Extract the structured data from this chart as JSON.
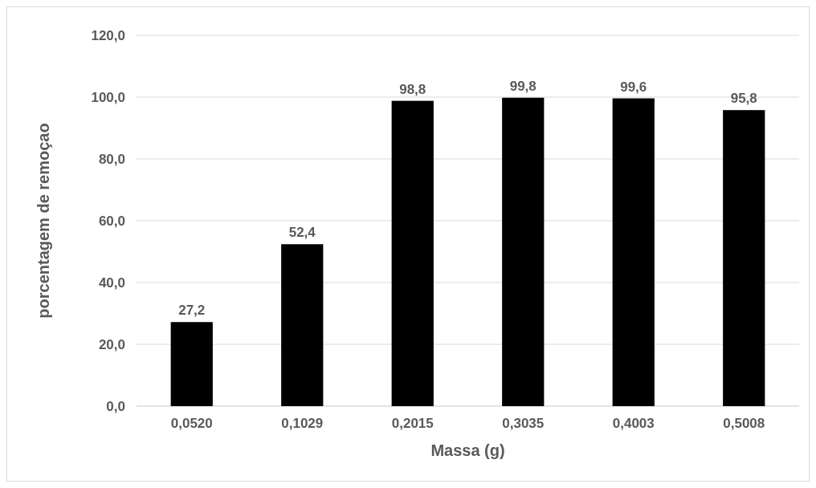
{
  "chart_data": {
    "type": "bar",
    "xlabel": "Massa (g)",
    "ylabel": "porcentagem de remoçao",
    "categories": [
      "0,0520",
      "0,1029",
      "0,2015",
      "0,3035",
      "0,4003",
      "0,5008"
    ],
    "values": [
      27.2,
      52.4,
      98.8,
      99.8,
      99.6,
      95.8
    ],
    "value_labels": [
      "27,2",
      "52,4",
      "98,8",
      "99,8",
      "99,6",
      "95,8"
    ],
    "color": "#000000",
    "ylim": [
      0,
      120
    ],
    "yticks": [
      {
        "value": 0,
        "label": "0,0"
      },
      {
        "value": 20,
        "label": "20,0"
      },
      {
        "value": 40,
        "label": "40,0"
      },
      {
        "value": 60,
        "label": "60,0"
      },
      {
        "value": 80,
        "label": "80,0"
      },
      {
        "value": 100,
        "label": "100,0"
      },
      {
        "value": 120,
        "label": "120,0"
      }
    ],
    "grid": "y"
  }
}
